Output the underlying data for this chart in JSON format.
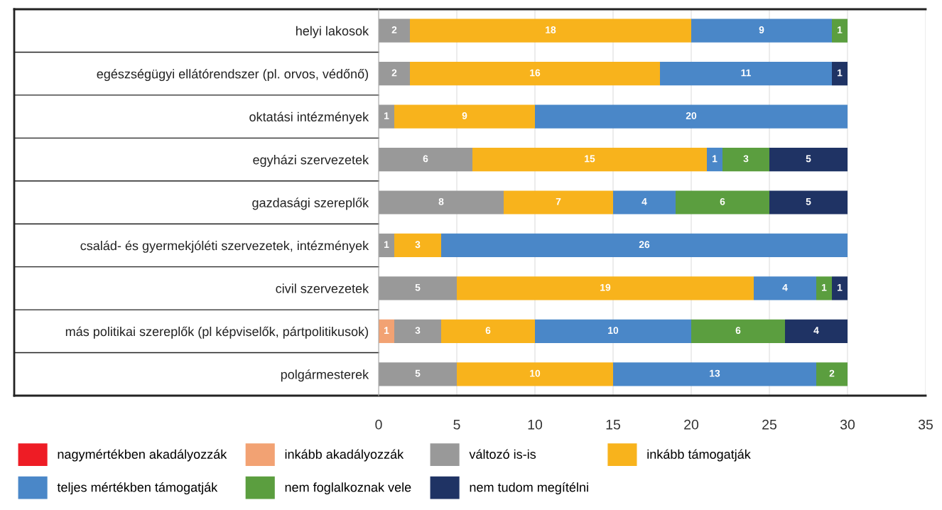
{
  "chart_data": {
    "type": "bar",
    "orientation": "horizontal",
    "stacked": true,
    "data_labels": true,
    "legend": "bottom",
    "grid": "x",
    "categories": [
      "helyi lakosok",
      "egészségügyi ellátórendszer (pl. orvos, védőnő)",
      "oktatási intézmények",
      "egyházi szervezetek",
      "gazdasági szereplők",
      "család- és gyermekjóléti szervezetek, intézmények",
      "civil szervezetek",
      "más politikai szereplők (pl képviselők, pártpolitikusok)",
      "polgármesterek"
    ],
    "xlim": [
      0,
      35
    ],
    "xticks": [
      0,
      5,
      10,
      15,
      20,
      25,
      30,
      35
    ],
    "series": [
      {
        "name": "nagymértékben akadályozzák",
        "color": "#ee1c25",
        "values": [
          null,
          null,
          null,
          null,
          null,
          null,
          null,
          null,
          null
        ]
      },
      {
        "name": "inkább akadályozzák",
        "color": "#f2a273",
        "values": [
          null,
          null,
          null,
          null,
          null,
          null,
          null,
          1,
          null
        ]
      },
      {
        "name": "változó is-is",
        "color": "#999999",
        "values": [
          2,
          2,
          1,
          6,
          8,
          1,
          5,
          3,
          5
        ]
      },
      {
        "name": "inkább támogatják",
        "color": "#f8b31c",
        "values": [
          18,
          16,
          9,
          15,
          7,
          3,
          19,
          6,
          10
        ]
      },
      {
        "name": "teljes mértékben támogatják",
        "color": "#4a87c8",
        "values": [
          9,
          11,
          20,
          1,
          4,
          26,
          4,
          10,
          13
        ]
      },
      {
        "name": "nem foglalkoznak vele",
        "color": "#5b9e3f",
        "values": [
          1,
          null,
          null,
          3,
          6,
          null,
          1,
          6,
          2
        ]
      },
      {
        "name": "nem tudom megítélni",
        "color": "#1f3364",
        "values": [
          null,
          1,
          null,
          5,
          5,
          null,
          1,
          4,
          null
        ]
      }
    ]
  }
}
